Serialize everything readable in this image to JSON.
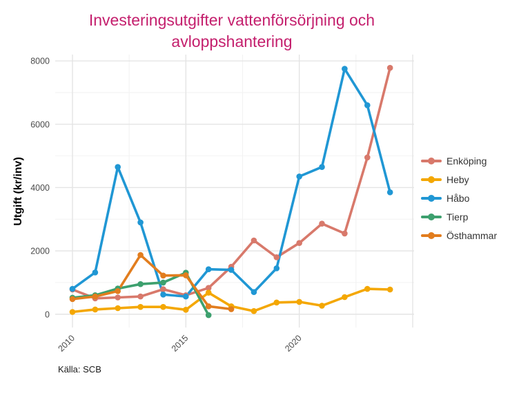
{
  "title": "Investeringsutgifter vattenförsörjning och avloppshantering",
  "caption": "Källa: SCB",
  "colors": {
    "title": "#c41f6d",
    "background": "#ffffff",
    "grid_major": "#e4e4e4",
    "grid_minor": "#f2f2f2",
    "axis_text": "#4b4b4b",
    "axis_title": "#000000",
    "caption_text": "#1a1a1a",
    "legend_text": "#333333"
  },
  "y_axis": {
    "title": "Utgift (kr/inv)",
    "ticks": [
      0,
      2000,
      4000,
      6000,
      8000
    ]
  },
  "x_axis": {
    "ticks": [
      2010,
      2015,
      2020
    ]
  },
  "legend": {
    "position": "right",
    "items": [
      "Enköping",
      "Heby",
      "Håbo",
      "Tierp",
      "Östhammar"
    ]
  },
  "chart_data": {
    "type": "line",
    "title": "Investeringsutgifter vattenförsörjning och avloppshantering",
    "xlabel": "",
    "ylabel": "Utgift (kr/inv)",
    "caption": "Källa: SCB",
    "grid": true,
    "legend_position": "right",
    "x": [
      2010,
      2011,
      2012,
      2013,
      2014,
      2015,
      2016,
      2017,
      2018,
      2019,
      2020,
      2021,
      2022,
      2023,
      2024
    ],
    "series": [
      {
        "name": "Enköping",
        "key": "enkoping",
        "color": "#d8796b",
        "values": [
          780,
          500,
          530,
          560,
          790,
          600,
          830,
          1500,
          2330,
          1800,
          2250,
          2860,
          2550,
          4950,
          7780
        ]
      },
      {
        "name": "Heby",
        "key": "heby",
        "color": "#f4a701",
        "values": [
          70,
          150,
          190,
          230,
          230,
          140,
          680,
          250,
          100,
          370,
          390,
          270,
          540,
          800,
          780
        ]
      },
      {
        "name": "Håbo",
        "key": "habo",
        "color": "#2097d4",
        "values": [
          800,
          1320,
          4650,
          2900,
          620,
          560,
          1420,
          1400,
          700,
          1450,
          4350,
          4650,
          7750,
          6600,
          3850
        ]
      },
      {
        "name": "Tierp",
        "key": "tierp",
        "color": "#3da06e",
        "values": [
          520,
          600,
          810,
          950,
          1000,
          1310,
          -30,
          null,
          null,
          null,
          null,
          null,
          null,
          null,
          null
        ]
      },
      {
        "name": "Östhammar",
        "key": "osthammar",
        "color": "#e27d1e",
        "values": [
          480,
          560,
          730,
          1870,
          1220,
          1230,
          250,
          160,
          null,
          null,
          null,
          null,
          null,
          null,
          null
        ]
      }
    ],
    "xlim": [
      2009.24,
      2025.06
    ],
    "ylim": [
      -420,
      8200
    ],
    "x_gridlines_major": [
      2010,
      2015,
      2020,
      2025
    ],
    "x_gridlines_minor": [
      2012.5,
      2017.5,
      2022.5
    ],
    "y_gridlines_major": [
      0,
      2000,
      4000,
      6000,
      8000
    ],
    "y_gridlines_minor": [
      1000,
      3000,
      5000,
      7000
    ]
  }
}
